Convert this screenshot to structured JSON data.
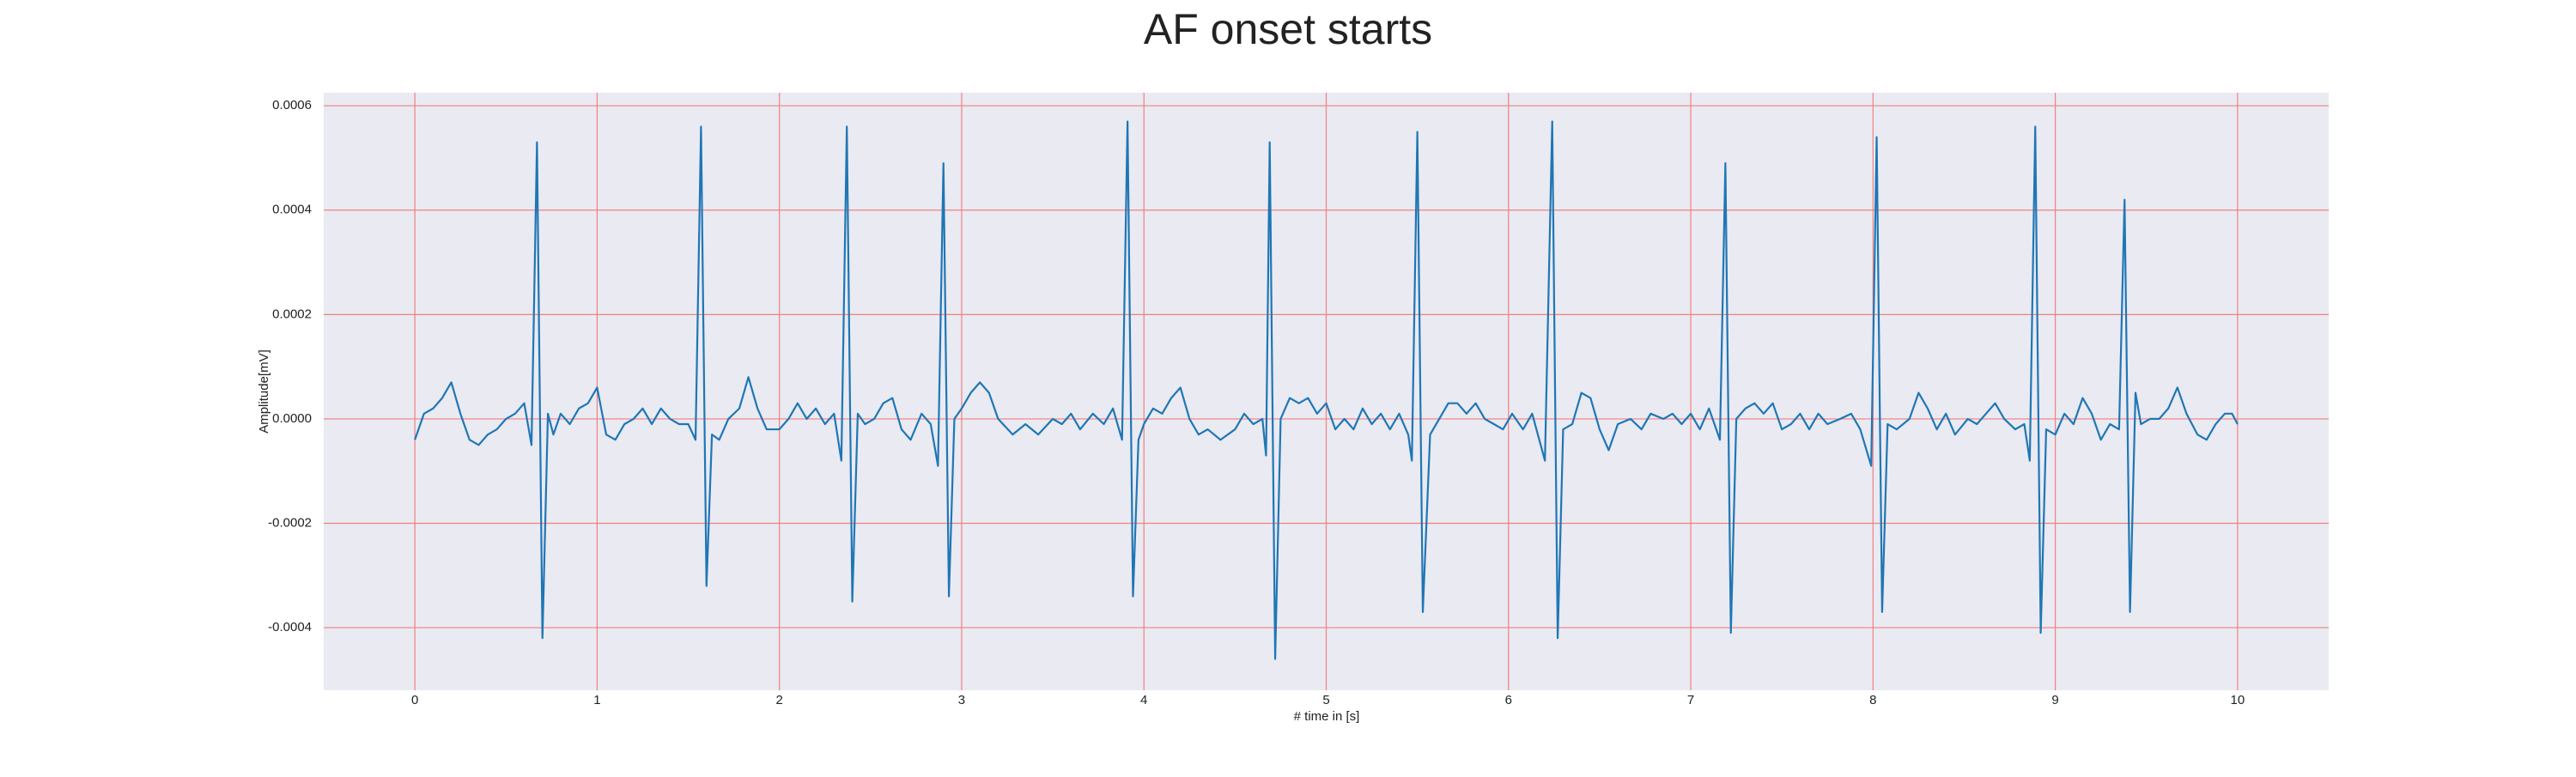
{
  "chart_data": {
    "type": "line",
    "title": "AF onset starts",
    "x_label": "# time in [s]",
    "y_label": "Amplitude[mV]",
    "x": [
      0,
      0.05,
      0.1,
      0.15,
      0.2,
      0.25,
      0.3,
      0.35,
      0.4,
      0.45,
      0.5,
      0.55,
      0.6,
      0.64,
      0.67,
      0.7,
      0.73,
      0.76,
      0.8,
      0.85,
      0.9,
      0.95,
      1.0,
      1.05,
      1.1,
      1.15,
      1.2,
      1.25,
      1.3,
      1.35,
      1.4,
      1.45,
      1.5,
      1.54,
      1.57,
      1.6,
      1.63,
      1.67,
      1.72,
      1.78,
      1.83,
      1.88,
      1.93,
      2.0,
      2.05,
      2.1,
      2.15,
      2.2,
      2.25,
      2.3,
      2.34,
      2.37,
      2.4,
      2.43,
      2.47,
      2.52,
      2.57,
      2.62,
      2.67,
      2.72,
      2.78,
      2.83,
      2.87,
      2.9,
      2.93,
      2.96,
      3.0,
      3.05,
      3.1,
      3.15,
      3.2,
      3.28,
      3.35,
      3.42,
      3.5,
      3.55,
      3.6,
      3.65,
      3.72,
      3.78,
      3.83,
      3.88,
      3.91,
      3.94,
      3.97,
      4.0,
      4.05,
      4.1,
      4.15,
      4.2,
      4.25,
      4.3,
      4.35,
      4.42,
      4.5,
      4.55,
      4.6,
      4.65,
      4.67,
      4.69,
      4.72,
      4.75,
      4.8,
      4.85,
      4.9,
      4.95,
      5.0,
      5.05,
      5.1,
      5.15,
      5.2,
      5.25,
      5.3,
      5.35,
      5.4,
      5.45,
      5.47,
      5.5,
      5.53,
      5.57,
      5.62,
      5.67,
      5.72,
      5.77,
      5.82,
      5.87,
      5.92,
      5.97,
      6.02,
      6.08,
      6.13,
      6.2,
      6.24,
      6.27,
      6.3,
      6.35,
      6.4,
      6.45,
      6.5,
      6.55,
      6.6,
      6.67,
      6.73,
      6.78,
      6.85,
      6.9,
      6.95,
      7.0,
      7.05,
      7.1,
      7.16,
      7.19,
      7.22,
      7.25,
      7.3,
      7.35,
      7.4,
      7.45,
      7.5,
      7.55,
      7.6,
      7.65,
      7.7,
      7.75,
      7.82,
      7.88,
      7.93,
      7.99,
      8.02,
      8.05,
      8.08,
      8.13,
      8.2,
      8.25,
      8.3,
      8.35,
      8.4,
      8.45,
      8.52,
      8.57,
      8.62,
      8.67,
      8.72,
      8.78,
      8.83,
      8.86,
      8.89,
      8.92,
      8.95,
      9.0,
      9.05,
      9.1,
      9.15,
      9.2,
      9.25,
      9.3,
      9.35,
      9.38,
      9.41,
      9.44,
      9.47,
      9.52,
      9.57,
      9.62,
      9.67,
      9.72,
      9.78,
      9.83,
      9.88,
      9.93,
      9.97,
      10.0
    ],
    "values": [
      -4e-05,
      1e-05,
      2e-05,
      4e-05,
      7e-05,
      1e-05,
      -4e-05,
      -5e-05,
      -3e-05,
      -2e-05,
      0,
      1e-05,
      3e-05,
      -5e-05,
      0.00053,
      -0.00042,
      1e-05,
      -3e-05,
      1e-05,
      -1e-05,
      2e-05,
      3e-05,
      6e-05,
      -3e-05,
      -4e-05,
      -1e-05,
      0,
      2e-05,
      -1e-05,
      2e-05,
      0,
      -1e-05,
      -1e-05,
      -4e-05,
      0.00056,
      -0.00032,
      -3e-05,
      -4e-05,
      0,
      2e-05,
      8e-05,
      2e-05,
      -2e-05,
      -2e-05,
      0,
      3e-05,
      0,
      2e-05,
      -1e-05,
      1e-05,
      -8e-05,
      0.00056,
      -0.00035,
      1e-05,
      -1e-05,
      0,
      3e-05,
      4e-05,
      -2e-05,
      -4e-05,
      1e-05,
      -1e-05,
      -9e-05,
      0.00049,
      -0.00034,
      0,
      2e-05,
      5e-05,
      7e-05,
      5e-05,
      0,
      -3e-05,
      -1e-05,
      -3e-05,
      0,
      -1e-05,
      1e-05,
      -2e-05,
      1e-05,
      -1e-05,
      2e-05,
      -4e-05,
      0.00057,
      -0.00034,
      -4e-05,
      -1e-05,
      2e-05,
      1e-05,
      4e-05,
      6e-05,
      0,
      -3e-05,
      -2e-05,
      -4e-05,
      -2e-05,
      1e-05,
      -1e-05,
      0,
      -7e-05,
      0.00053,
      -0.00046,
      0,
      4e-05,
      3e-05,
      4e-05,
      1e-05,
      3e-05,
      -2e-05,
      0,
      -2e-05,
      2e-05,
      -1e-05,
      1e-05,
      -2e-05,
      1e-05,
      -3e-05,
      -8e-05,
      0.00055,
      -0.00037,
      -3e-05,
      0,
      3e-05,
      3e-05,
      1e-05,
      3e-05,
      0,
      -1e-05,
      -2e-05,
      1e-05,
      -2e-05,
      1e-05,
      -8e-05,
      0.00057,
      -0.00042,
      -2e-05,
      -1e-05,
      5e-05,
      4e-05,
      -2e-05,
      -6e-05,
      -1e-05,
      0,
      -2e-05,
      1e-05,
      0,
      1e-05,
      -1e-05,
      1e-05,
      -2e-05,
      2e-05,
      -4e-05,
      0.00049,
      -0.00041,
      0,
      2e-05,
      3e-05,
      1e-05,
      3e-05,
      -2e-05,
      -1e-05,
      1e-05,
      -2e-05,
      1e-05,
      -1e-05,
      0,
      1e-05,
      -2e-05,
      -9e-05,
      0.00054,
      -0.00037,
      -1e-05,
      -2e-05,
      0,
      5e-05,
      2e-05,
      -2e-05,
      1e-05,
      -3e-05,
      0,
      -1e-05,
      1e-05,
      3e-05,
      0,
      -2e-05,
      -1e-05,
      -8e-05,
      0.00056,
      -0.00041,
      -2e-05,
      -3e-05,
      1e-05,
      -1e-05,
      4e-05,
      1e-05,
      -4e-05,
      -1e-05,
      -2e-05,
      0.00042,
      -0.00037,
      5e-05,
      -1e-05,
      0,
      0,
      2e-05,
      6e-05,
      1e-05,
      -3e-05,
      -4e-05,
      -1e-05,
      1e-05,
      1e-05,
      -1e-05
    ],
    "color": "#1f77b4",
    "xlim": [
      -0.5,
      10.5
    ],
    "xticks": [
      0,
      1,
      2,
      3,
      4,
      5,
      6,
      7,
      8,
      9,
      10
    ],
    "ylim": [
      -0.00052,
      0.000625
    ],
    "yticks": [
      {
        "value": -0.0004,
        "label": "-0.0004"
      },
      {
        "value": -0.0002,
        "label": "-0.0002"
      },
      {
        "value": 0,
        "label": "0.0000"
      },
      {
        "value": 0.0002,
        "label": "0.0002"
      },
      {
        "value": 0.0004,
        "label": "0.0004"
      },
      {
        "value": 0.0006,
        "label": "0.0006"
      }
    ],
    "grid": true
  }
}
